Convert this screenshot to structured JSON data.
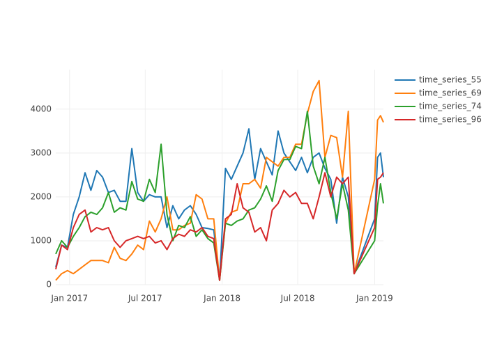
{
  "chart_data": {
    "type": "line",
    "x": [
      "2016-11-29",
      "2016-12-13",
      "2016-12-27",
      "2017-01-10",
      "2017-01-24",
      "2017-02-07",
      "2017-02-21",
      "2017-03-07",
      "2017-03-21",
      "2017-04-04",
      "2017-04-18",
      "2017-05-02",
      "2017-05-16",
      "2017-05-30",
      "2017-06-13",
      "2017-06-27",
      "2017-07-11",
      "2017-07-25",
      "2017-08-08",
      "2017-08-22",
      "2017-09-05",
      "2017-09-19",
      "2017-10-03",
      "2017-10-17",
      "2017-10-31",
      "2017-11-14",
      "2017-11-28",
      "2017-12-12",
      "2017-12-26",
      "2018-01-09",
      "2018-01-23",
      "2018-02-06",
      "2018-02-20",
      "2018-03-06",
      "2018-03-20",
      "2018-04-03",
      "2018-04-17",
      "2018-05-01",
      "2018-05-15",
      "2018-05-29",
      "2018-06-12",
      "2018-06-26",
      "2018-07-10",
      "2018-07-24",
      "2018-08-07",
      "2018-08-21",
      "2018-09-04",
      "2018-09-18",
      "2018-10-02",
      "2018-10-16",
      "2018-10-30",
      "2018-11-13",
      "2019-01-01",
      "2019-01-08",
      "2019-01-15",
      "2019-01-22"
    ],
    "series": [
      {
        "name": "time_series_55",
        "color": "#1f77b4",
        "values": [
          400,
          900,
          850,
          1600,
          2000,
          2550,
          2150,
          2600,
          2450,
          2100,
          2150,
          1900,
          1900,
          3100,
          2100,
          1900,
          2050,
          2000,
          2000,
          1300,
          1800,
          1500,
          1700,
          1800,
          1600,
          1300,
          1280,
          1250,
          100,
          2650,
          2400,
          2700,
          3000,
          3550,
          2400,
          3100,
          2800,
          2500,
          3500,
          3000,
          2800,
          2600,
          2900,
          2550,
          2900,
          3000,
          2650,
          2400,
          1400,
          2450,
          2000,
          250,
          1500,
          2900,
          3000,
          2450
        ]
      },
      {
        "name": "time_series_69",
        "color": "#ff7f0e",
        "values": [
          100,
          250,
          320,
          250,
          350,
          450,
          550,
          550,
          550,
          500,
          850,
          600,
          550,
          700,
          900,
          800,
          1450,
          1200,
          1500,
          2000,
          1250,
          1250,
          1350,
          1400,
          2050,
          1950,
          1500,
          1500,
          100,
          1400,
          1650,
          1700,
          2300,
          2300,
          2400,
          2200,
          2900,
          2800,
          2700,
          2900,
          2900,
          3200,
          3200,
          3900,
          4400,
          4650,
          2900,
          3400,
          3350,
          2450,
          3950,
          250,
          2400,
          3750,
          3850,
          3700
        ]
      },
      {
        "name": "time_series_74",
        "color": "#2ca02c",
        "values": [
          700,
          1000,
          850,
          1100,
          1300,
          1550,
          1650,
          1600,
          1750,
          2100,
          1650,
          1750,
          1700,
          2350,
          1950,
          1900,
          2400,
          2100,
          3200,
          1600,
          1000,
          1350,
          1300,
          1550,
          1100,
          1250,
          1050,
          950,
          100,
          1400,
          1350,
          1450,
          1500,
          1700,
          1750,
          1950,
          2250,
          1900,
          2600,
          2850,
          2850,
          3150,
          3100,
          3950,
          2700,
          2300,
          2900,
          2100,
          1500,
          2300,
          1700,
          250,
          1000,
          1800,
          2300,
          1850
        ]
      },
      {
        "name": "time_series_96",
        "color": "#d62728",
        "values": [
          350,
          900,
          800,
          1300,
          1600,
          1700,
          1200,
          1300,
          1250,
          1300,
          1000,
          850,
          1000,
          1050,
          1100,
          1050,
          1100,
          950,
          1000,
          800,
          1050,
          1150,
          1100,
          1250,
          1200,
          1300,
          1100,
          1050,
          100,
          1500,
          1600,
          2300,
          1750,
          1650,
          1200,
          1300,
          1000,
          1700,
          1850,
          2150,
          2000,
          2100,
          1850,
          1850,
          1500,
          2000,
          2550,
          2000,
          2450,
          2300,
          2450,
          250,
          1300,
          2400,
          2450,
          2550
        ]
      }
    ],
    "xlim": [
      "2016-11-29",
      "2019-01-22"
    ],
    "xticks": [
      {
        "value": "2017-01-01",
        "label": "Jan 2017"
      },
      {
        "value": "2017-07-01",
        "label": "Jul 2017"
      },
      {
        "value": "2018-01-01",
        "label": "Jan 2018"
      },
      {
        "value": "2018-07-01",
        "label": "Jul 2018"
      },
      {
        "value": "2019-01-01",
        "label": "Jan 2019"
      }
    ],
    "ylim": [
      0,
      4900
    ],
    "yticks": [
      0,
      1000,
      2000,
      3000,
      4000
    ],
    "grid": true,
    "legend": "top-right"
  }
}
